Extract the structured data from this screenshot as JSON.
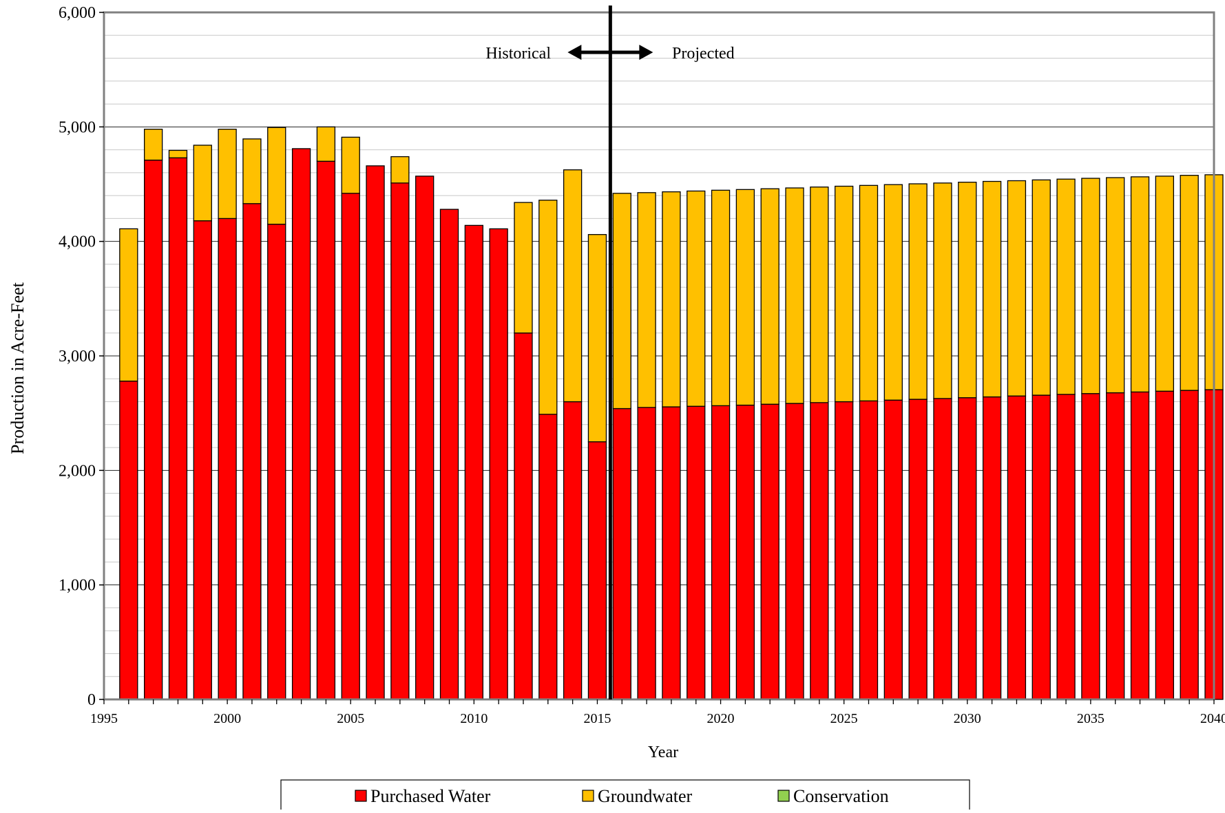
{
  "chart_data": {
    "type": "bar",
    "stacked": true,
    "title": "",
    "xlabel": "Year",
    "ylabel": "Production in Acre-Feet",
    "ylim": [
      0,
      6000
    ],
    "xlim": [
      1995,
      2040
    ],
    "x_tick_labels": [
      "1995",
      "2000",
      "2005",
      "2010",
      "2015",
      "2020",
      "2025",
      "2030",
      "2035",
      "2040"
    ],
    "y_tick_labels": [
      "0",
      "1,000",
      "2,000",
      "3,000",
      "4,000",
      "5,000",
      "6,000"
    ],
    "y_major_ticks": [
      0,
      1000,
      2000,
      3000,
      4000,
      5000,
      6000
    ],
    "y_minor_step": 200,
    "grid": true,
    "legend_position": "bottom",
    "annotations": {
      "historical_label": "Historical",
      "projected_label": "Projected",
      "divider_year": 2015.5
    },
    "categories": [
      1996,
      1997,
      1998,
      1999,
      2000,
      2001,
      2002,
      2003,
      2004,
      2005,
      2006,
      2007,
      2008,
      2009,
      2010,
      2011,
      2012,
      2013,
      2014,
      2015,
      2016,
      2017,
      2018,
      2019,
      2020,
      2021,
      2022,
      2023,
      2024,
      2025,
      2026,
      2027,
      2028,
      2029,
      2030,
      2031,
      2032,
      2033,
      2034,
      2035,
      2036,
      2037,
      2038,
      2039,
      2040
    ],
    "series": [
      {
        "name": "Purchased Water",
        "color": "#ff0000",
        "values": [
          2780,
          4710,
          4730,
          4180,
          4200,
          4330,
          4150,
          4810,
          4700,
          4420,
          4660,
          4510,
          4570,
          4280,
          4140,
          4110,
          3200,
          2490,
          2600,
          2250,
          2540,
          2550,
          2555,
          2560,
          2565,
          2570,
          2578,
          2585,
          2592,
          2600,
          2607,
          2614,
          2621,
          2628,
          2635,
          2642,
          2650,
          2657,
          2664,
          2671,
          2678,
          2685,
          2692,
          2699,
          2705
        ]
      },
      {
        "name": "Groundwater",
        "color": "#ffc000",
        "values": [
          1330,
          270,
          65,
          660,
          780,
          565,
          845,
          0,
          300,
          490,
          0,
          230,
          0,
          0,
          0,
          0,
          1140,
          1870,
          2025,
          1810,
          1880,
          1876,
          1878,
          1880,
          1882,
          1883,
          1882,
          1882,
          1883,
          1882,
          1882,
          1882,
          1882,
          1882,
          1882,
          1882,
          1880,
          1880,
          1880,
          1880,
          1879,
          1879,
          1878,
          1878,
          1877
        ]
      },
      {
        "name": "Conservation",
        "color": "#92d050",
        "values": [
          0,
          0,
          0,
          0,
          0,
          0,
          0,
          0,
          0,
          0,
          0,
          0,
          0,
          0,
          0,
          0,
          0,
          0,
          0,
          0,
          0,
          0,
          0,
          0,
          0,
          0,
          0,
          0,
          0,
          0,
          0,
          0,
          0,
          0,
          0,
          0,
          0,
          0,
          0,
          0,
          0,
          0,
          0,
          0,
          0
        ]
      }
    ]
  }
}
